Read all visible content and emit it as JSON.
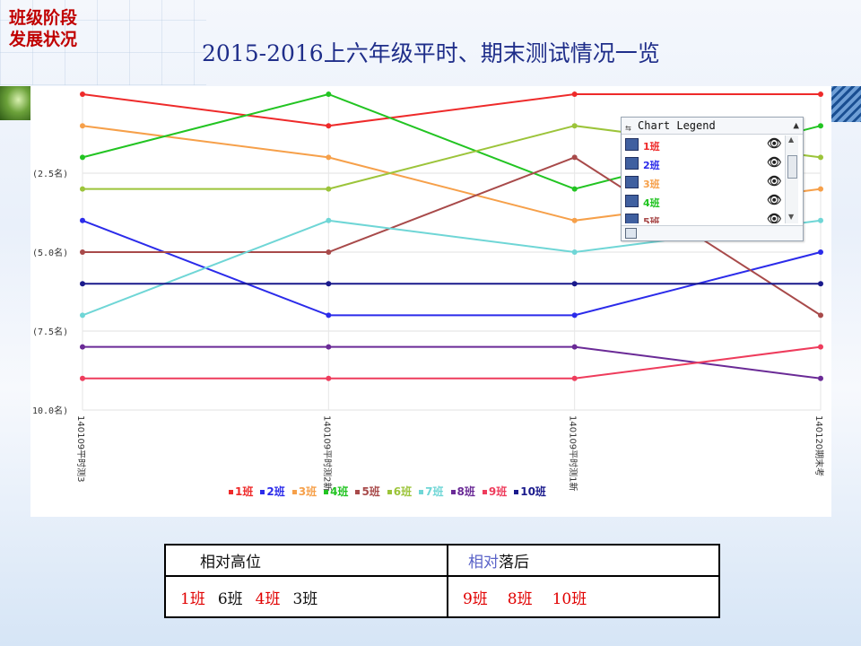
{
  "slide": {
    "corner_label_line1": "班级阶段",
    "corner_label_line2": "发展状况",
    "title": "2015-2016上六年级平时、期末测试情况一览"
  },
  "colors": {
    "title": "#1f2e8a",
    "corner_label": "#c00000",
    "highlight_red": "#e00000",
    "highlight_blue": "#5a63c8"
  },
  "chart_data": {
    "type": "line",
    "title": "",
    "y_inverted": true,
    "ylim": [
      0,
      10
    ],
    "y_ticks": [
      "(2.5名)",
      "(5.0名)",
      "(7.5名)",
      "10.0名)"
    ],
    "y_tick_values": [
      2.5,
      5.0,
      7.5,
      10.0
    ],
    "x": [
      "140109平时测3",
      "140109平时测2新",
      "140109平时测1新",
      "140120期末考"
    ],
    "grid": true,
    "series": [
      {
        "name": "1班",
        "color": "#ee2a2a",
        "values": [
          0,
          1,
          0,
          0
        ]
      },
      {
        "name": "2班",
        "color": "#2b2bea",
        "values": [
          4,
          7,
          7,
          5
        ]
      },
      {
        "name": "3班",
        "color": "#f6a04a",
        "values": [
          1,
          2,
          4,
          3
        ]
      },
      {
        "name": "4班",
        "color": "#22c422",
        "values": [
          2,
          0,
          3,
          1
        ]
      },
      {
        "name": "5班",
        "color": "#a84a4a",
        "values": [
          5,
          5,
          2,
          7
        ]
      },
      {
        "name": "6班",
        "color": "#9cc43a",
        "values": [
          3,
          3,
          1,
          2
        ]
      },
      {
        "name": "7班",
        "color": "#6fd6d6",
        "values": [
          7,
          4,
          5,
          4
        ]
      },
      {
        "name": "8班",
        "color": "#6a2a96",
        "values": [
          8,
          8,
          8,
          9
        ]
      },
      {
        "name": "9班",
        "color": "#ee3c5c",
        "values": [
          9,
          9,
          9,
          8
        ]
      },
      {
        "name": "10班",
        "color": "#1a1a8c",
        "values": [
          6,
          6,
          6,
          6
        ]
      }
    ],
    "legend": {
      "title": "Chart Legend",
      "placement": "top-right",
      "visible_items": [
        "1班",
        "2班",
        "3班",
        "4班",
        "5班"
      ]
    }
  },
  "summary_table": {
    "header_left": "相对高位",
    "header_right_part1": "相对",
    "header_right_part2": "落后",
    "left_row": [
      {
        "text": "1班",
        "color": "red"
      },
      {
        "text": "6班",
        "color": "black"
      },
      {
        "text": "4班",
        "color": "red"
      },
      {
        "text": "3班",
        "color": "black"
      }
    ],
    "right_row": [
      {
        "text": "9班",
        "color": "red"
      },
      {
        "text": "8班",
        "color": "red"
      },
      {
        "text": "10班",
        "color": "red"
      }
    ]
  }
}
